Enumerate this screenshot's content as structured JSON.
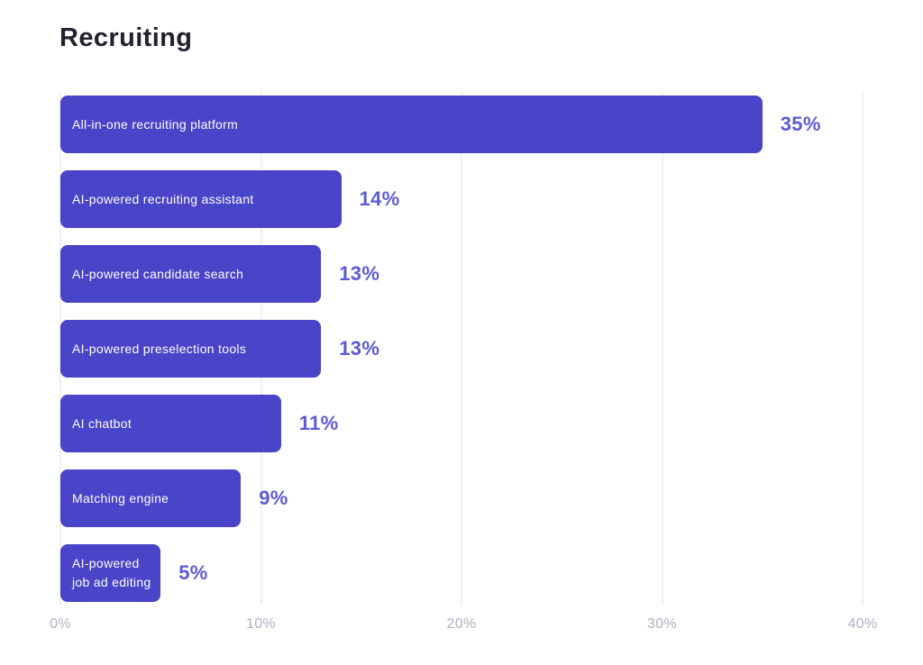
{
  "chart_data": {
    "type": "bar",
    "orientation": "horizontal",
    "title": "Recruiting",
    "categories": [
      "All-in-one recruiting platform",
      "AI-powered recruiting assistant",
      "AI-powered candidate search",
      "AI-powered preselection tools",
      "AI chatbot",
      "Matching engine",
      "AI-powered job ad editing"
    ],
    "values": [
      35,
      14,
      13,
      13,
      11,
      9,
      5
    ],
    "value_labels": [
      "35%",
      "14%",
      "13%",
      "13%",
      "11%",
      "9%",
      "5%"
    ],
    "xlabel": "",
    "ylabel": "",
    "xlim": [
      0,
      40
    ],
    "x_ticks": [
      {
        "value": 0,
        "label": "0%"
      },
      {
        "value": 10,
        "label": "10%"
      },
      {
        "value": 20,
        "label": "20%"
      },
      {
        "value": 30,
        "label": "30%"
      },
      {
        "value": 40,
        "label": "40%"
      }
    ],
    "grid": "vertical-only",
    "legend": "none"
  },
  "colors": {
    "background": "#ffffff",
    "bar": "#4944c8",
    "bar_text": "#ffffff",
    "value_label": "#5d5ad8",
    "title": "#232130",
    "axis_label": "#aeb1c2",
    "gridline": "#f0f0f4"
  }
}
